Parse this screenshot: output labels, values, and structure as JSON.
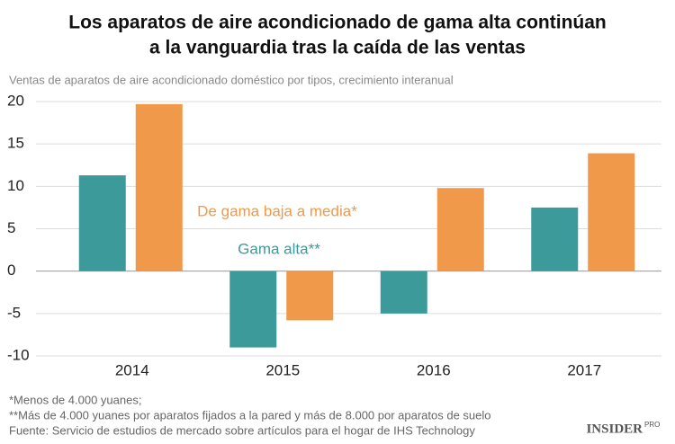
{
  "chart_data": {
    "type": "bar",
    "title": [
      "Los aparatos de aire acondicionado de gama alta continúan",
      "a la vanguardia tras la caída de las ventas"
    ],
    "subtitle": "Ventas de aparatos de aire acondicionado doméstico por tipos, crecimiento interanual",
    "categories": [
      "2014",
      "2015",
      "2016",
      "2017"
    ],
    "series": [
      {
        "name": "Gama alta**",
        "color": "#3d9a9b",
        "values": [
          11.3,
          -9,
          -5,
          7.5
        ]
      },
      {
        "name": "De gama baja a media*",
        "color": "#f0994a",
        "values": [
          19.7,
          -5.8,
          9.8,
          13.9
        ]
      }
    ],
    "ylim": [
      -10,
      20
    ],
    "yticks": [
      20,
      15,
      10,
      5,
      0,
      -5,
      -10
    ],
    "grid": true,
    "notes": [
      "*Menos de 4.000 yuanes;",
      "**Más de 4.000 yuanes por aparatos fijados a la pared y más de 8.000 por aparatos de suelo",
      "Fuente: Servicio de estudios de mercado sobre artículos para el hogar de IHS Technology"
    ],
    "logo": "INSIDER",
    "logo_sup": "PRO"
  }
}
